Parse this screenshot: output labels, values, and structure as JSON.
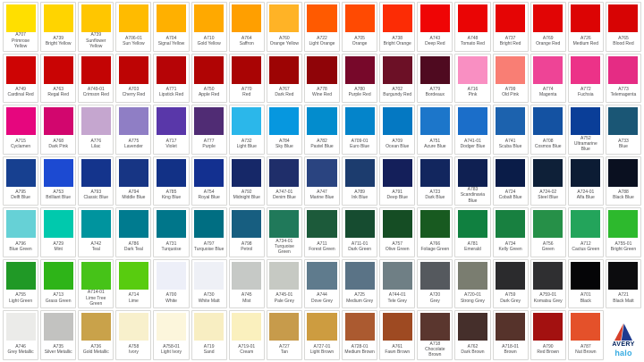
{
  "brand": {
    "name": "AVERY",
    "sub_brand": "halo",
    "navy": "#00205b",
    "red": "#d6402b",
    "light_blue": "#38ace2"
  },
  "chart": {
    "columns": 17,
    "rows": [
      {
        "cells": [
          {
            "code": "A707",
            "name": "Primrose Yellow",
            "color": "#FFDF00"
          },
          {
            "code": "A739",
            "name": "Bright Yellow",
            "color": "#FFD400"
          },
          {
            "code": "A739",
            "name": "Sunflower Yellow",
            "color": "#FFC600"
          },
          {
            "code": "A706-01",
            "name": "Sun Yellow",
            "color": "#FFBB00"
          },
          {
            "code": "A704",
            "name": "Signal Yellow",
            "color": "#FFB000"
          },
          {
            "code": "A710",
            "name": "Gold Yellow",
            "color": "#FFA900"
          },
          {
            "code": "A764",
            "name": "Saffron",
            "color": "#FF9F00"
          },
          {
            "code": "A760",
            "name": "Orange Yellow",
            "color": "#FFB326"
          },
          {
            "code": "A722",
            "name": "Light Orange",
            "color": "#FF5A00"
          },
          {
            "code": "A705",
            "name": "Orange",
            "color": "#FF4A02"
          },
          {
            "code": "A738",
            "name": "Bright Orange",
            "color": "#FC2C05"
          },
          {
            "code": "A743",
            "name": "Deep Red",
            "color": "#EF0505"
          },
          {
            "code": "A748",
            "name": "Tomato Red",
            "color": "#EA0505"
          },
          {
            "code": "A737",
            "name": "Bright Red",
            "color": "#E50505"
          },
          {
            "code": "A769",
            "name": "Orange Red",
            "color": "#E10505"
          },
          {
            "code": "A726",
            "name": "Medium Red",
            "color": "#DC0404"
          },
          {
            "code": "A765",
            "name": "Blood Red",
            "color": "#D70404"
          }
        ]
      },
      {
        "cells": [
          {
            "code": "A749",
            "name": "Cardinal Red",
            "color": "#CE0404"
          },
          {
            "code": "A763",
            "name": "Regal Red",
            "color": "#C90404"
          },
          {
            "code": "A749-01",
            "name": "Crimson Red",
            "color": "#C30404"
          },
          {
            "code": "A703",
            "name": "Cherry Red",
            "color": "#BD0404"
          },
          {
            "code": "A771",
            "name": "Lipstick Red",
            "color": "#B60406"
          },
          {
            "code": "A750",
            "name": "Apple Red",
            "color": "#B00404"
          },
          {
            "code": "A770",
            "name": "Red",
            "color": "#A90404"
          },
          {
            "code": "A767",
            "name": "Dark Red",
            "color": "#9D0404"
          },
          {
            "code": "A778",
            "name": "Wine Red",
            "color": "#8F0408"
          },
          {
            "code": "A780",
            "name": "Purple Red",
            "color": "#77082A"
          },
          {
            "code": "A702",
            "name": "Burgundy Red",
            "color": "#6C1026"
          },
          {
            "code": "A779",
            "name": "Bordeaux",
            "color": "#4F0A20"
          },
          {
            "code": "A716",
            "name": "Pink",
            "color": "#F98FC2"
          },
          {
            "code": "A799",
            "name": "Old Pink",
            "color": "#F97E74"
          },
          {
            "code": "A774",
            "name": "Magenta",
            "color": "#EE4496"
          },
          {
            "code": "A772",
            "name": "Fuchsia",
            "color": "#EC3288"
          },
          {
            "code": "A773",
            "name": "Telemagenta",
            "color": "#E52C84"
          }
        ]
      },
      {
        "cells": [
          {
            "code": "A715",
            "name": "Cyclamen",
            "color": "#E6067E"
          },
          {
            "code": "A768",
            "name": "Dark Pink",
            "color": "#D2066E"
          },
          {
            "code": "A776",
            "name": "Lilac",
            "color": "#C5A6CF"
          },
          {
            "code": "A775",
            "name": "Lavender",
            "color": "#8F7EC5"
          },
          {
            "code": "A717",
            "name": "Violet",
            "color": "#5937A9"
          },
          {
            "code": "A777",
            "name": "Purple",
            "color": "#502C74"
          },
          {
            "code": "A732",
            "name": "Light Blue",
            "color": "#2BB7EA"
          },
          {
            "code": "A784",
            "name": "Sky Blue",
            "color": "#0697DF"
          },
          {
            "code": "A782",
            "name": "Pastel Blue",
            "color": "#038CCD"
          },
          {
            "code": "A709-01",
            "name": "Euro Blue",
            "color": "#0484CA"
          },
          {
            "code": "A709",
            "name": "Ocean Blue",
            "color": "#0478C2"
          },
          {
            "code": "A751",
            "name": "Azure Blue",
            "color": "#1C76CA"
          },
          {
            "code": "A741-01",
            "name": "Dodger Blue",
            "color": "#1B6EC9"
          },
          {
            "code": "A741",
            "name": "Scuba Blue",
            "color": "#1C62AE"
          },
          {
            "code": "A708",
            "name": "Cosmos Blue",
            "color": "#1452A2"
          },
          {
            "code": "A752",
            "name": "Ultramarine Blue",
            "color": "#0A3E98"
          },
          {
            "code": "A733",
            "name": "Blue",
            "color": "#1A5675"
          }
        ]
      },
      {
        "cells": [
          {
            "code": "A795",
            "name": "Delft Blue",
            "color": "#174090"
          },
          {
            "code": "A753",
            "name": "Brilliant Blue",
            "color": "#1C4AD2"
          },
          {
            "code": "A793",
            "name": "Classic Blue",
            "color": "#14348C"
          },
          {
            "code": "A794",
            "name": "Middle Blue",
            "color": "#173584"
          },
          {
            "code": "A785",
            "name": "King Blue",
            "color": "#123186"
          },
          {
            "code": "A754",
            "name": "Royal Blue",
            "color": "#133090"
          },
          {
            "code": "A792",
            "name": "Midnight Blue",
            "color": "#162868"
          },
          {
            "code": "A747-01",
            "name": "Denim Blue",
            "color": "#1F2E6A"
          },
          {
            "code": "A747",
            "name": "Marine Blue",
            "color": "#2A4480"
          },
          {
            "code": "A789",
            "name": "Ink Blue",
            "color": "#1C3C6E"
          },
          {
            "code": "A791",
            "name": "Deep Blue",
            "color": "#141F5A"
          },
          {
            "code": "A723",
            "name": "Dark Blue",
            "color": "#12265E"
          },
          {
            "code": "A783",
            "name": "Scandinavia Blue",
            "color": "#0F2052"
          },
          {
            "code": "A724",
            "name": "Cobalt Blue",
            "color": "#0A1C48"
          },
          {
            "code": "A724-02",
            "name": "Steel Blue",
            "color": "#0E2038"
          },
          {
            "code": "A724-01",
            "name": "Alfa Blue",
            "color": "#0C1C34"
          },
          {
            "code": "A788",
            "name": "Black Blue",
            "color": "#0A1020"
          }
        ]
      },
      {
        "cells": [
          {
            "code": "A796",
            "name": "Blue Green",
            "color": "#66D1D6"
          },
          {
            "code": "A729",
            "name": "Mint",
            "color": "#00C9AD"
          },
          {
            "code": "A742",
            "name": "Teal",
            "color": "#00949E"
          },
          {
            "code": "A786",
            "name": "Dark Teal",
            "color": "#007B8F"
          },
          {
            "code": "A731",
            "name": "Turquoise",
            "color": "#00768A"
          },
          {
            "code": "A797",
            "name": "Turquoise Blue",
            "color": "#006E82"
          },
          {
            "code": "A798",
            "name": "Petrol",
            "color": "#175E80"
          },
          {
            "code": "A734-01",
            "name": "Turquoise Green",
            "color": "#20795A"
          },
          {
            "code": "A711",
            "name": "Forest Green",
            "color": "#1C5A3A"
          },
          {
            "code": "A711-01",
            "name": "Dark Green",
            "color": "#164C30"
          },
          {
            "code": "A757",
            "name": "Olive Green",
            "color": "#154D24"
          },
          {
            "code": "A766",
            "name": "Foliage Green",
            "color": "#185A20"
          },
          {
            "code": "A781",
            "name": "Emerald",
            "color": "#108040"
          },
          {
            "code": "A734",
            "name": "Kelly Green",
            "color": "#188040"
          },
          {
            "code": "A756",
            "name": "Green",
            "color": "#269048"
          },
          {
            "code": "A712",
            "name": "Cactus Green",
            "color": "#23A45B"
          },
          {
            "code": "A755-01",
            "name": "Bright Green",
            "color": "#2DB92D"
          }
        ]
      },
      {
        "cells": [
          {
            "code": "A755",
            "name": "Light Green",
            "color": "#209926"
          },
          {
            "code": "A713",
            "name": "Grass Green",
            "color": "#2EB418"
          },
          {
            "code": "A714-01",
            "name": "Lime Tree Green",
            "color": "#46C318"
          },
          {
            "code": "A714",
            "name": "Lime",
            "color": "#58CC0F"
          },
          {
            "code": "A700",
            "name": "White",
            "color": "#EDEFF8"
          },
          {
            "code": "A730",
            "name": "White Matt",
            "color": "#EEF0F6"
          },
          {
            "code": "A745",
            "name": "Mist",
            "color": "#C6C9C6"
          },
          {
            "code": "A745-01",
            "name": "Pale Grey",
            "color": "#C6C9C3"
          },
          {
            "code": "A744",
            "name": "Dove Grey",
            "color": "#5F7B8D"
          },
          {
            "code": "A725",
            "name": "Medium Grey",
            "color": "#5A7386"
          },
          {
            "code": "A744-01",
            "name": "Tele Grey",
            "color": "#6F7F85"
          },
          {
            "code": "A720",
            "name": "Grey",
            "color": "#55595E"
          },
          {
            "code": "A720-01",
            "name": "Strong Grey",
            "color": "#7A7D70"
          },
          {
            "code": "A759",
            "name": "Dark Grey",
            "color": "#2B2B2D"
          },
          {
            "code": "A759-01",
            "name": "Komatsu Grey",
            "color": "#2F2F31"
          },
          {
            "code": "A701",
            "name": "Black",
            "color": "#050507"
          },
          {
            "code": "A721",
            "name": "Black Matt",
            "color": "#0C0C0E"
          }
        ]
      },
      {
        "cells": [
          {
            "code": "A746",
            "name": "Grey Metallic",
            "color": "#EBEBE9"
          },
          {
            "code": "A735",
            "name": "Silver Metallic",
            "color": "#C2C2C0"
          },
          {
            "code": "A736",
            "name": "Gold Metallic",
            "color": "#C9A24A"
          },
          {
            "code": "A758",
            "name": "Ivory",
            "color": "#F8F0CC"
          },
          {
            "code": "A758-01",
            "name": "Light Ivory",
            "color": "#FCF6DC"
          },
          {
            "code": "A719",
            "name": "Sand",
            "color": "#F8EEC2"
          },
          {
            "code": "A719-01",
            "name": "Cream",
            "color": "#FAF0BE"
          },
          {
            "code": "A727",
            "name": "Tan",
            "color": "#C79B4B"
          },
          {
            "code": "A727-01",
            "name": "Light Brown",
            "color": "#CD9C40"
          },
          {
            "code": "A728-01",
            "name": "Medium Brown",
            "color": "#AB5A30"
          },
          {
            "code": "A761",
            "name": "Fawn Brown",
            "color": "#9E4A22"
          },
          {
            "code": "A718",
            "name": "Chocolate Brown",
            "color": "#5A362E"
          },
          {
            "code": "A762",
            "name": "Dark Brown",
            "color": "#452F2B"
          },
          {
            "code": "A718-01",
            "name": "Brown",
            "color": "#56332B"
          },
          {
            "code": "A790",
            "name": "Red Brown",
            "color": "#A31110"
          },
          {
            "code": "A787",
            "name": "Nut Brown",
            "color": "#E4512A"
          }
        ]
      }
    ]
  }
}
